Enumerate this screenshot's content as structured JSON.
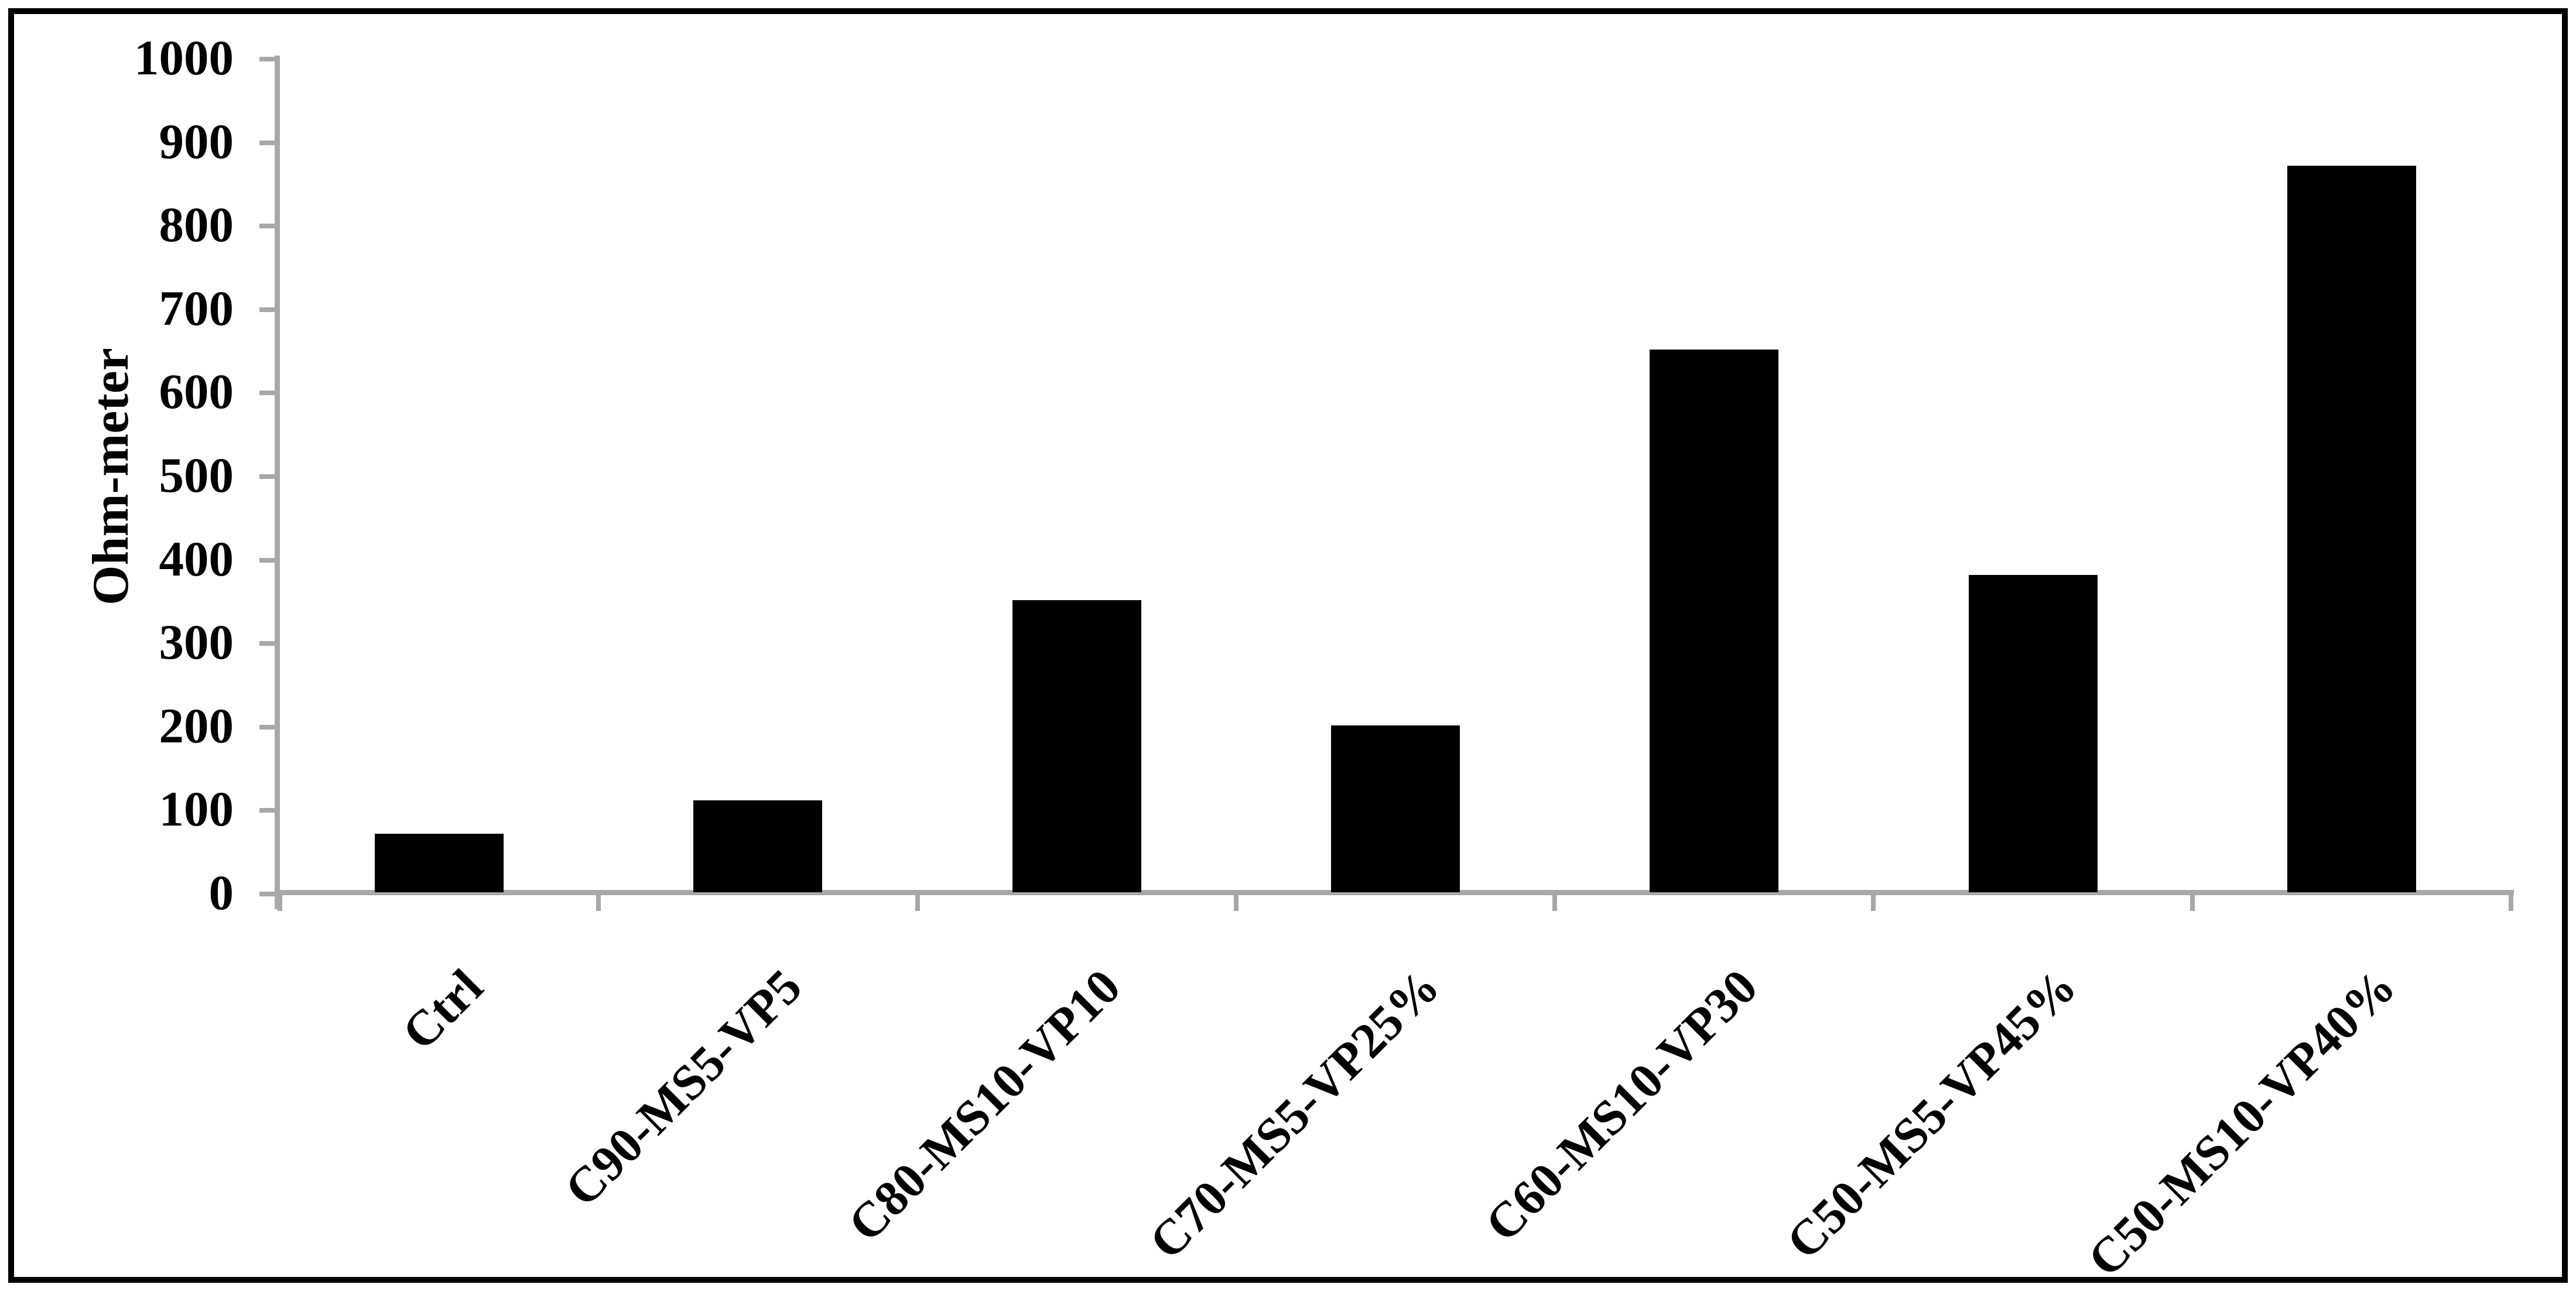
{
  "chart_data": {
    "type": "bar",
    "title": "",
    "xlabel": "",
    "ylabel": "Ohm-meter",
    "categories": [
      "Ctrl",
      "C90-MS5-VP5",
      "C80-MS10-VP10",
      "C70-MS5-VP25%",
      "C60-MS10-VP30",
      "C50-MS5-VP45%",
      "C50-MS10-VP40%"
    ],
    "values": [
      70,
      110,
      350,
      200,
      650,
      380,
      870
    ],
    "ylim": [
      0,
      1000
    ],
    "ytick_step": 100,
    "ytick_labels": [
      "0",
      "100",
      "200",
      "300",
      "400",
      "500",
      "600",
      "700",
      "800",
      "900",
      "1000"
    ],
    "grid": false,
    "legend": false,
    "bar_color": "#000000",
    "axis_color": "#a8a8a8",
    "text_color": "#000000",
    "frame_color": "#000000",
    "background_color": "#ffffff",
    "x_label_rotation_deg": 45
  }
}
